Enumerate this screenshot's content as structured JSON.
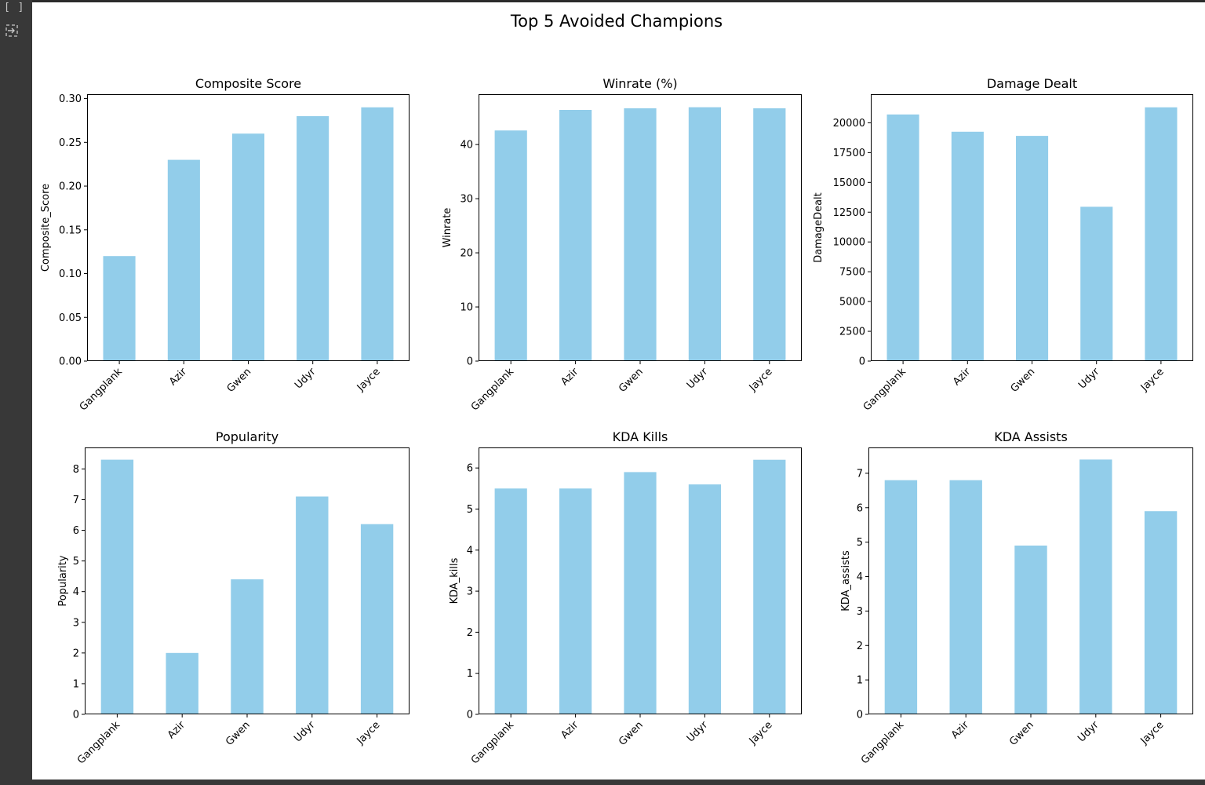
{
  "cell": {
    "brackets": "[ ]",
    "output_icon": "output-collapse-icon"
  },
  "figure": {
    "suptitle": "Top 5 Avoided Champions",
    "bar_color": "#92cdea"
  },
  "chart_data": [
    {
      "type": "bar",
      "title": "Composite Score",
      "xlabel": "",
      "ylabel": "Composite_Score",
      "categories": [
        "Gangplank",
        "Azir",
        "Gwen",
        "Udyr",
        "Jayce"
      ],
      "values": [
        0.12,
        0.23,
        0.26,
        0.28,
        0.29
      ],
      "ylim": [
        0,
        0.305
      ],
      "yticks": [
        0,
        0.05,
        0.1,
        0.15,
        0.2,
        0.25,
        0.3
      ],
      "ytick_labels": [
        "0.00",
        "0.05",
        "0.10",
        "0.15",
        "0.20",
        "0.25",
        "0.30"
      ],
      "grid": false
    },
    {
      "type": "bar",
      "title": "Winrate (%)",
      "xlabel": "",
      "ylabel": "Winrate",
      "categories": [
        "Gangplank",
        "Azir",
        "Gwen",
        "Udyr",
        "Jayce"
      ],
      "values": [
        42.6,
        46.4,
        46.7,
        46.9,
        46.7
      ],
      "ylim": [
        0,
        49.3
      ],
      "yticks": [
        0,
        10,
        20,
        30,
        40
      ],
      "ytick_labels": [
        "0",
        "10",
        "20",
        "30",
        "40"
      ],
      "grid": false
    },
    {
      "type": "bar",
      "title": "Damage Dealt",
      "xlabel": "",
      "ylabel": "DamageDealt",
      "categories": [
        "Gangplank",
        "Azir",
        "Gwen",
        "Udyr",
        "Jayce"
      ],
      "values": [
        20700,
        19250,
        18900,
        12950,
        21300
      ],
      "ylim": [
        0,
        22400
      ],
      "yticks": [
        0,
        2500,
        5000,
        7500,
        10000,
        12500,
        15000,
        17500,
        20000
      ],
      "ytick_labels": [
        "0",
        "2500",
        "5000",
        "7500",
        "10000",
        "12500",
        "15000",
        "17500",
        "20000"
      ],
      "grid": false
    },
    {
      "type": "bar",
      "title": "Popularity",
      "xlabel": "",
      "ylabel": "Popularity",
      "categories": [
        "Gangplank",
        "Azir",
        "Gwen",
        "Udyr",
        "Jayce"
      ],
      "values": [
        8.3,
        2.0,
        4.4,
        7.1,
        6.2
      ],
      "ylim": [
        0,
        8.7
      ],
      "yticks": [
        0,
        1,
        2,
        3,
        4,
        5,
        6,
        7,
        8
      ],
      "ytick_labels": [
        "0",
        "1",
        "2",
        "3",
        "4",
        "5",
        "6",
        "7",
        "8"
      ],
      "grid": false
    },
    {
      "type": "bar",
      "title": "KDA Kills",
      "xlabel": "",
      "ylabel": "KDA_kills",
      "categories": [
        "Gangplank",
        "Azir",
        "Gwen",
        "Udyr",
        "Jayce"
      ],
      "values": [
        5.5,
        5.5,
        5.9,
        5.6,
        6.2
      ],
      "ylim": [
        0,
        6.5
      ],
      "yticks": [
        0,
        1,
        2,
        3,
        4,
        5,
        6
      ],
      "ytick_labels": [
        "0",
        "1",
        "2",
        "3",
        "4",
        "5",
        "6"
      ],
      "grid": false
    },
    {
      "type": "bar",
      "title": "KDA Assists",
      "xlabel": "",
      "ylabel": "KDA_assists",
      "categories": [
        "Gangplank",
        "Azir",
        "Gwen",
        "Udyr",
        "Jayce"
      ],
      "values": [
        6.8,
        6.8,
        4.9,
        7.4,
        5.9
      ],
      "ylim": [
        0,
        7.75
      ],
      "yticks": [
        0,
        1,
        2,
        3,
        4,
        5,
        6,
        7
      ],
      "ytick_labels": [
        "0",
        "1",
        "2",
        "3",
        "4",
        "5",
        "6",
        "7"
      ],
      "grid": false
    }
  ]
}
